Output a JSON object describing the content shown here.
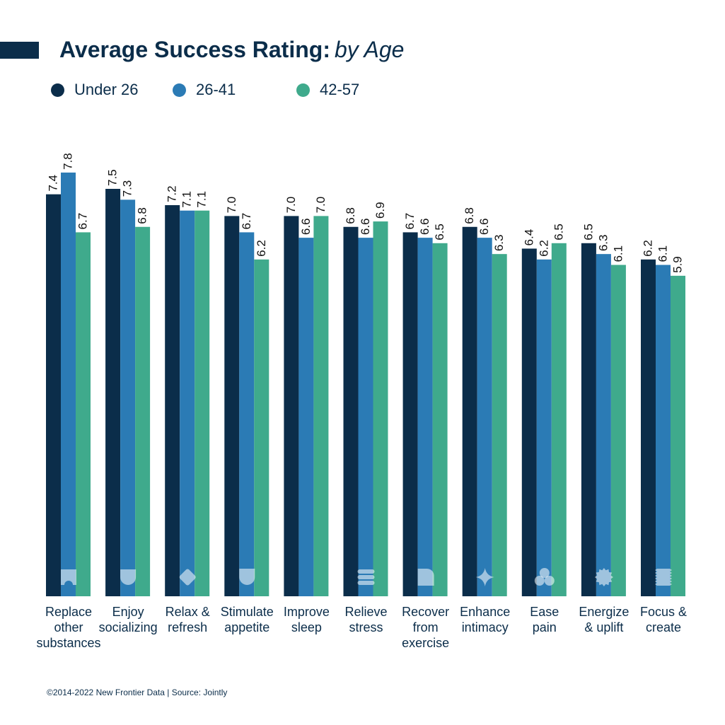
{
  "title": {
    "main": "Average Success Rating:",
    "sub": "by Age"
  },
  "colors": {
    "navy": "#0b2d4a",
    "blue": "#2b7bb5",
    "green": "#3faa8c",
    "icon": "#ffffff"
  },
  "chart_data": {
    "type": "bar",
    "title": "Average Success Rating: by Age",
    "xlabel": "",
    "ylabel": "",
    "ylim": [
      0,
      10
    ],
    "grid": false,
    "legend_position": "top-left",
    "categories": [
      "Replace other substances",
      "Enjoy socializing",
      "Relax & refresh",
      "Stimulate appetite",
      "Improve sleep",
      "Relieve stress",
      "Recover from exercise",
      "Enhance intimacy",
      "Ease pain",
      "Energize & uplift",
      "Focus & create"
    ],
    "category_lines": [
      [
        "Replace",
        "other",
        "substances"
      ],
      [
        "Enjoy",
        "socializing"
      ],
      [
        "Relax &",
        "refresh"
      ],
      [
        "Stimulate",
        "appetite"
      ],
      [
        "Improve",
        "sleep"
      ],
      [
        "Relieve",
        "stress"
      ],
      [
        "Recover",
        "from",
        "exercise"
      ],
      [
        "Enhance",
        "intimacy"
      ],
      [
        "Ease",
        "pain"
      ],
      [
        "Energize",
        "& uplift"
      ],
      [
        "Focus &",
        "create"
      ]
    ],
    "category_icons": [
      "arch-icon",
      "drop-icon",
      "diamond-icon",
      "cup-icon",
      "moon-icon",
      "stack-icon",
      "rounded-square-icon",
      "sparkle-icon",
      "clover-icon",
      "badge-icon",
      "zigzag-icon"
    ],
    "series": [
      {
        "name": "Under 26",
        "color": "#0b2d4a",
        "values": [
          7.4,
          7.5,
          7.2,
          7.0,
          7.0,
          6.8,
          6.7,
          6.8,
          6.4,
          6.5,
          6.2
        ],
        "labels": [
          "7.4",
          "7.5",
          "7.2",
          "7.0",
          "7.0",
          "6.8",
          "6.7",
          "6.8",
          "6.4",
          "6.5",
          "6.2"
        ]
      },
      {
        "name": "26-41",
        "color": "#2b7bb5",
        "values": [
          7.8,
          7.3,
          7.1,
          6.7,
          6.6,
          6.6,
          6.6,
          6.6,
          6.2,
          6.3,
          6.1
        ],
        "labels": [
          "7.8",
          "7.3",
          "7.1",
          "6.7",
          "6.6",
          "6.6",
          "6.6",
          "6.6",
          "6.2",
          "6.3",
          "6.1"
        ]
      },
      {
        "name": "42-57",
        "color": "#3faa8c",
        "values": [
          6.7,
          6.8,
          7.1,
          6.2,
          7.0,
          6.9,
          6.5,
          6.3,
          6.5,
          6.1,
          5.9
        ],
        "labels": [
          "6.7",
          "6.8",
          "7.1",
          "6.2",
          "7.0",
          "6.9",
          "6.5",
          "6.3",
          "6.5",
          "6.1",
          "5.9"
        ]
      }
    ]
  },
  "footer": "©2014-2022  New Frontier Data | Source: Jointly"
}
